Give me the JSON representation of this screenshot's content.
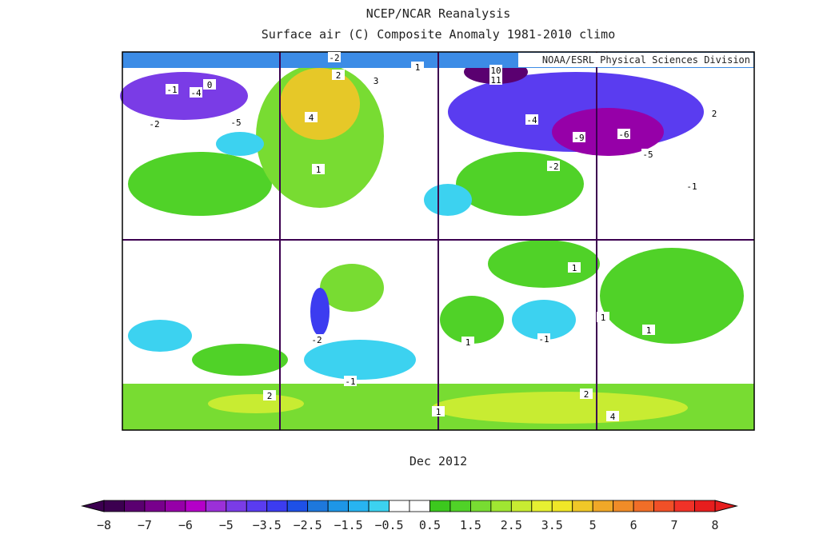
{
  "header": {
    "title": "NCEP/NCAR Reanalysis",
    "subtitle": "Surface air (C) Composite Anomaly 1981-2010 climo",
    "credit": "NOAA/ESRL Physical Sciences Division"
  },
  "map": {
    "date": "Dec 2012",
    "contour_labels": [
      "-2",
      "1",
      "2",
      "3",
      "-1",
      "-4",
      "0",
      "-5",
      "4",
      "-2",
      "1",
      "10",
      "11",
      "-4",
      "-9",
      "-6",
      "-5",
      "-2",
      "2",
      "-1",
      "1",
      "1",
      "1",
      "-2",
      "-1",
      "-1",
      "1",
      "2",
      "4",
      "1",
      "2"
    ]
  },
  "colorbar": {
    "colors": [
      "#3c0050",
      "#5a0070",
      "#78008c",
      "#9600a8",
      "#b400c8",
      "#9b30d8",
      "#7a3ce6",
      "#5a3cf0",
      "#3c3cf0",
      "#1e50e6",
      "#1e78dc",
      "#1e96e6",
      "#28b4f0",
      "#3cd2f0",
      "#ffffff",
      "#ffffff",
      "#3cc81e",
      "#50d228",
      "#78dc32",
      "#a0e632",
      "#c8ec32",
      "#e6f032",
      "#f0e628",
      "#f0c828",
      "#f0a828",
      "#f08c28",
      "#f06e28",
      "#f05028",
      "#f03228",
      "#e61e1e"
    ],
    "labels": [
      "−8",
      "−7",
      "−6",
      "−5",
      "−3.5",
      "−2.5",
      "−1.5",
      "−0.5",
      "0.5",
      "1.5",
      "2.5",
      "3.5",
      "5",
      "6",
      "7",
      "8"
    ]
  }
}
